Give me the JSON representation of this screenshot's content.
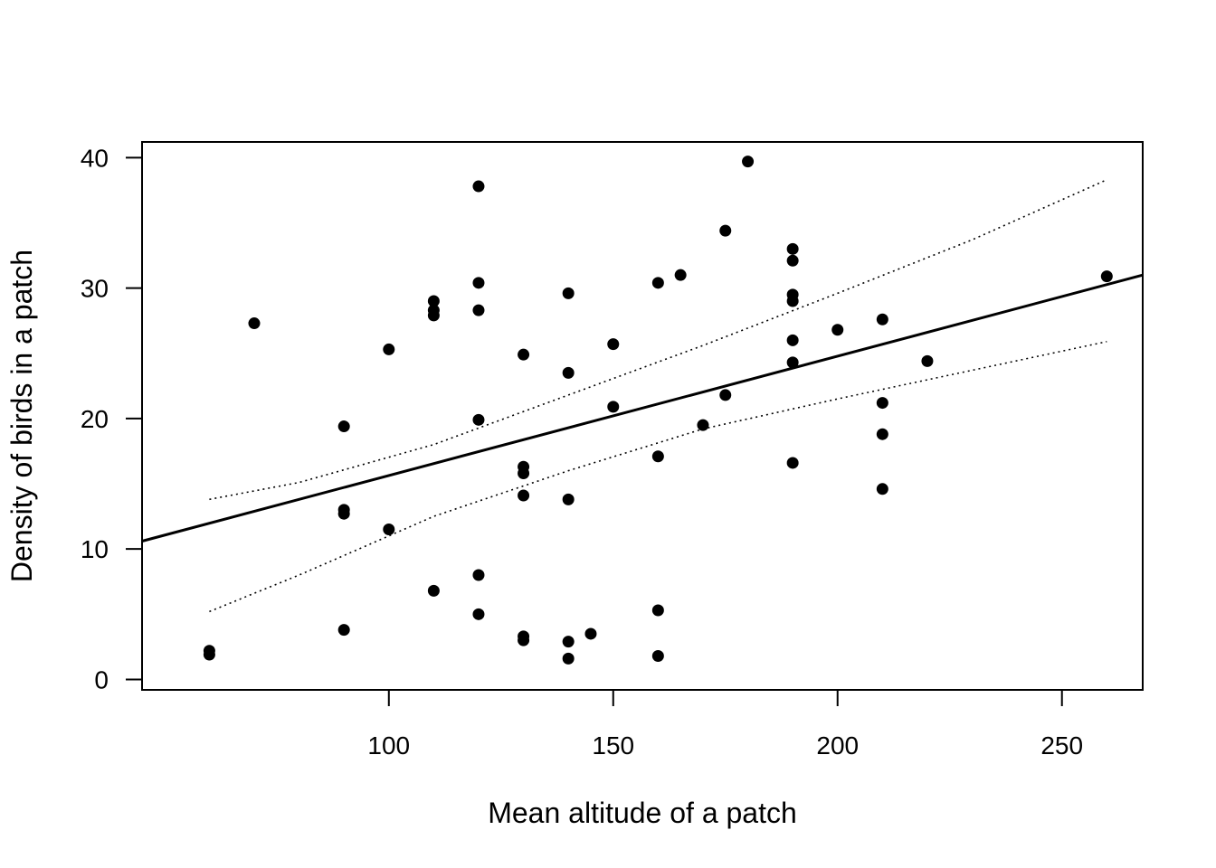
{
  "chart_data": {
    "type": "scatter",
    "title": "",
    "xlabel": "Mean altitude of a patch",
    "ylabel": "Density of birds in a patch",
    "xlim": [
      45,
      268
    ],
    "ylim": [
      -0.8,
      41.2
    ],
    "xticks": [
      100,
      150,
      200,
      250
    ],
    "yticks": [
      0,
      10,
      20,
      30,
      40
    ],
    "grid": false,
    "colors": {
      "points": "#000000",
      "lines": "#000000",
      "frame": "#000000"
    },
    "points": [
      {
        "x": 60,
        "y": 2.2
      },
      {
        "x": 60,
        "y": 1.9
      },
      {
        "x": 70,
        "y": 27.3
      },
      {
        "x": 90,
        "y": 19.4
      },
      {
        "x": 90,
        "y": 13.0
      },
      {
        "x": 90,
        "y": 12.7
      },
      {
        "x": 90,
        "y": 3.8
      },
      {
        "x": 100,
        "y": 25.3
      },
      {
        "x": 100,
        "y": 11.5
      },
      {
        "x": 110,
        "y": 29.0
      },
      {
        "x": 110,
        "y": 28.3
      },
      {
        "x": 110,
        "y": 27.9
      },
      {
        "x": 110,
        "y": 6.8
      },
      {
        "x": 120,
        "y": 37.8
      },
      {
        "x": 120,
        "y": 30.4
      },
      {
        "x": 120,
        "y": 28.3
      },
      {
        "x": 120,
        "y": 19.9
      },
      {
        "x": 120,
        "y": 8.0
      },
      {
        "x": 120,
        "y": 5.0
      },
      {
        "x": 130,
        "y": 24.9
      },
      {
        "x": 130,
        "y": 16.3
      },
      {
        "x": 130,
        "y": 15.8
      },
      {
        "x": 130,
        "y": 14.1
      },
      {
        "x": 130,
        "y": 3.3
      },
      {
        "x": 130,
        "y": 3.0
      },
      {
        "x": 140,
        "y": 29.6
      },
      {
        "x": 140,
        "y": 23.5
      },
      {
        "x": 140,
        "y": 13.8
      },
      {
        "x": 140,
        "y": 2.9
      },
      {
        "x": 140,
        "y": 1.6
      },
      {
        "x": 145,
        "y": 3.5
      },
      {
        "x": 150,
        "y": 25.7
      },
      {
        "x": 150,
        "y": 20.9
      },
      {
        "x": 160,
        "y": 30.4
      },
      {
        "x": 160,
        "y": 17.1
      },
      {
        "x": 160,
        "y": 5.3
      },
      {
        "x": 160,
        "y": 1.8
      },
      {
        "x": 165,
        "y": 31.0
      },
      {
        "x": 170,
        "y": 19.5
      },
      {
        "x": 175,
        "y": 34.4
      },
      {
        "x": 175,
        "y": 21.8
      },
      {
        "x": 180,
        "y": 39.7
      },
      {
        "x": 190,
        "y": 33.0
      },
      {
        "x": 190,
        "y": 32.1
      },
      {
        "x": 190,
        "y": 29.5
      },
      {
        "x": 190,
        "y": 29.0
      },
      {
        "x": 190,
        "y": 26.0
      },
      {
        "x": 190,
        "y": 24.3
      },
      {
        "x": 190,
        "y": 16.6
      },
      {
        "x": 200,
        "y": 26.8
      },
      {
        "x": 210,
        "y": 27.6
      },
      {
        "x": 210,
        "y": 21.2
      },
      {
        "x": 210,
        "y": 18.8
      },
      {
        "x": 210,
        "y": 14.6
      },
      {
        "x": 220,
        "y": 24.4
      },
      {
        "x": 260,
        "y": 30.9
      }
    ],
    "series": [
      {
        "style": "solid",
        "x": [
          45,
          268
        ],
        "y": [
          10.6,
          31.0
        ]
      },
      {
        "style": "dotted",
        "x": [
          60,
          80,
          110,
          140,
          170,
          200,
          230,
          260
        ],
        "y": [
          13.8,
          15.1,
          18.0,
          21.8,
          25.6,
          29.6,
          33.7,
          38.3
        ]
      },
      {
        "style": "dotted",
        "x": [
          60,
          80,
          110,
          140,
          170,
          200,
          230,
          260
        ],
        "y": [
          5.2,
          8.0,
          12.5,
          16.0,
          19.2,
          21.5,
          23.7,
          25.9
        ]
      }
    ]
  }
}
